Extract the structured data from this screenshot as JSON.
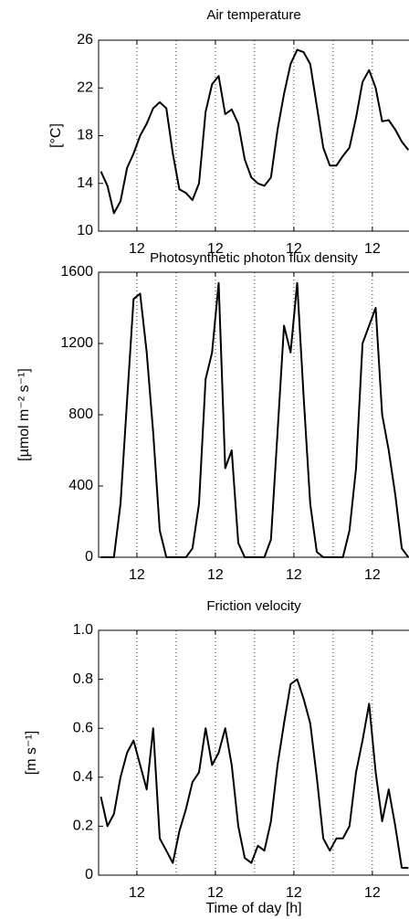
{
  "chart_data": [
    {
      "type": "line",
      "title": "Air temperature",
      "ylabel": "[°C]",
      "x": [
        1,
        3,
        5,
        7,
        9,
        11,
        13,
        15,
        17,
        19,
        21,
        23,
        25,
        27,
        29,
        31,
        33,
        35,
        37,
        39,
        41,
        43,
        45,
        47,
        49,
        51,
        53,
        55,
        57,
        59,
        61,
        63,
        65,
        67,
        69,
        71,
        73,
        75,
        77,
        79,
        81,
        83,
        85,
        87,
        89,
        91,
        93,
        95
      ],
      "series": [
        {
          "color": "#000000",
          "values": [
            15,
            13.8,
            11.5,
            12.5,
            15.3,
            16.5,
            18,
            19,
            20.3,
            20.8,
            20.3,
            16.5,
            13.5,
            13.2,
            12.6,
            14,
            20,
            22.3,
            23,
            19.8,
            20.2,
            19,
            16,
            14.5,
            14,
            13.8,
            14.5,
            18.5,
            21.5,
            24,
            25.2,
            25,
            24,
            20.5,
            17,
            15.5,
            15.5,
            16.3,
            17,
            19.5,
            22.5,
            23.5,
            22,
            19.2,
            19.3,
            18.5,
            17.5,
            16.8
          ]
        }
      ],
      "xlim": [
        0.3,
        95.2
      ],
      "xticks": [
        12,
        {
          "value": 36,
          "label": "12"
        },
        {
          "value": 60,
          "label": "12"
        },
        {
          "value": 84,
          "label": "12"
        }
      ],
      "xminorticks": [
        24,
        48,
        72
      ],
      "ylim": [
        10,
        26
      ],
      "yticks": [
        10,
        14,
        18,
        22,
        26
      ],
      "grid": "dotted-x"
    },
    {
      "type": "line",
      "title": "Photosynthetic photon flux density",
      "ylabel": "[µmol m⁻² s⁻¹]",
      "x": [
        1,
        3,
        5,
        7,
        9,
        11,
        13,
        15,
        17,
        19,
        21,
        23,
        25,
        27,
        29,
        31,
        33,
        35,
        37,
        39,
        41,
        43,
        45,
        47,
        49,
        51,
        53,
        55,
        57,
        59,
        61,
        63,
        65,
        67,
        69,
        71,
        73,
        75,
        77,
        79,
        81,
        83,
        85,
        87,
        89,
        91,
        93,
        95
      ],
      "series": [
        {
          "color": "#000000",
          "values": [
            0,
            0,
            0,
            300,
            880,
            1450,
            1480,
            1150,
            700,
            150,
            0,
            0,
            0,
            0,
            50,
            300,
            1000,
            1150,
            1540,
            500,
            600,
            80,
            0,
            0,
            0,
            0,
            100,
            700,
            1300,
            1150,
            1540,
            900,
            300,
            30,
            0,
            0,
            0,
            0,
            150,
            500,
            1200,
            1300,
            1400,
            800,
            600,
            350,
            50,
            0
          ]
        }
      ],
      "xlim": [
        0.3,
        95.2
      ],
      "xticks": [
        12,
        {
          "value": 36,
          "label": "12"
        },
        {
          "value": 60,
          "label": "12"
        },
        {
          "value": 84,
          "label": "12"
        }
      ],
      "xminorticks": [
        24,
        48,
        72
      ],
      "ylim": [
        0,
        1600
      ],
      "yticks": [
        0,
        400,
        800,
        1200,
        1600
      ],
      "grid": "dotted-x"
    },
    {
      "type": "line",
      "title": "Friction velocity",
      "ylabel": "[m s⁻¹]",
      "xlabel": "Time of day [h]",
      "x": [
        1,
        3,
        5,
        7,
        9,
        11,
        13,
        15,
        17,
        19,
        21,
        23,
        25,
        27,
        29,
        31,
        33,
        35,
        37,
        39,
        41,
        43,
        45,
        47,
        49,
        51,
        53,
        55,
        57,
        59,
        61,
        63,
        65,
        67,
        69,
        71,
        73,
        75,
        77,
        79,
        81,
        83,
        85,
        87,
        89,
        91,
        93,
        95
      ],
      "series": [
        {
          "color": "#000000",
          "values": [
            0.32,
            0.2,
            0.25,
            0.4,
            0.5,
            0.55,
            0.45,
            0.35,
            0.6,
            0.15,
            0.1,
            0.05,
            0.18,
            0.27,
            0.38,
            0.42,
            0.6,
            0.45,
            0.5,
            0.6,
            0.45,
            0.2,
            0.07,
            0.05,
            0.12,
            0.1,
            0.22,
            0.45,
            0.62,
            0.78,
            0.8,
            0.72,
            0.62,
            0.4,
            0.15,
            0.1,
            0.15,
            0.15,
            0.2,
            0.42,
            0.55,
            0.7,
            0.42,
            0.22,
            0.35,
            0.2,
            0.03,
            0.03
          ]
        }
      ],
      "xlim": [
        0.3,
        95.2
      ],
      "xticks": [
        12,
        {
          "value": 36,
          "label": "12"
        },
        {
          "value": 60,
          "label": "12"
        },
        {
          "value": 84,
          "label": "12"
        }
      ],
      "xminorticks": [
        24,
        48,
        72
      ],
      "ylim": [
        0,
        1
      ],
      "yticks": [
        0,
        0.2,
        0.4,
        0.6,
        0.8,
        {
          "value": 1,
          "label": "1.0"
        }
      ],
      "grid": "dotted-x"
    }
  ]
}
